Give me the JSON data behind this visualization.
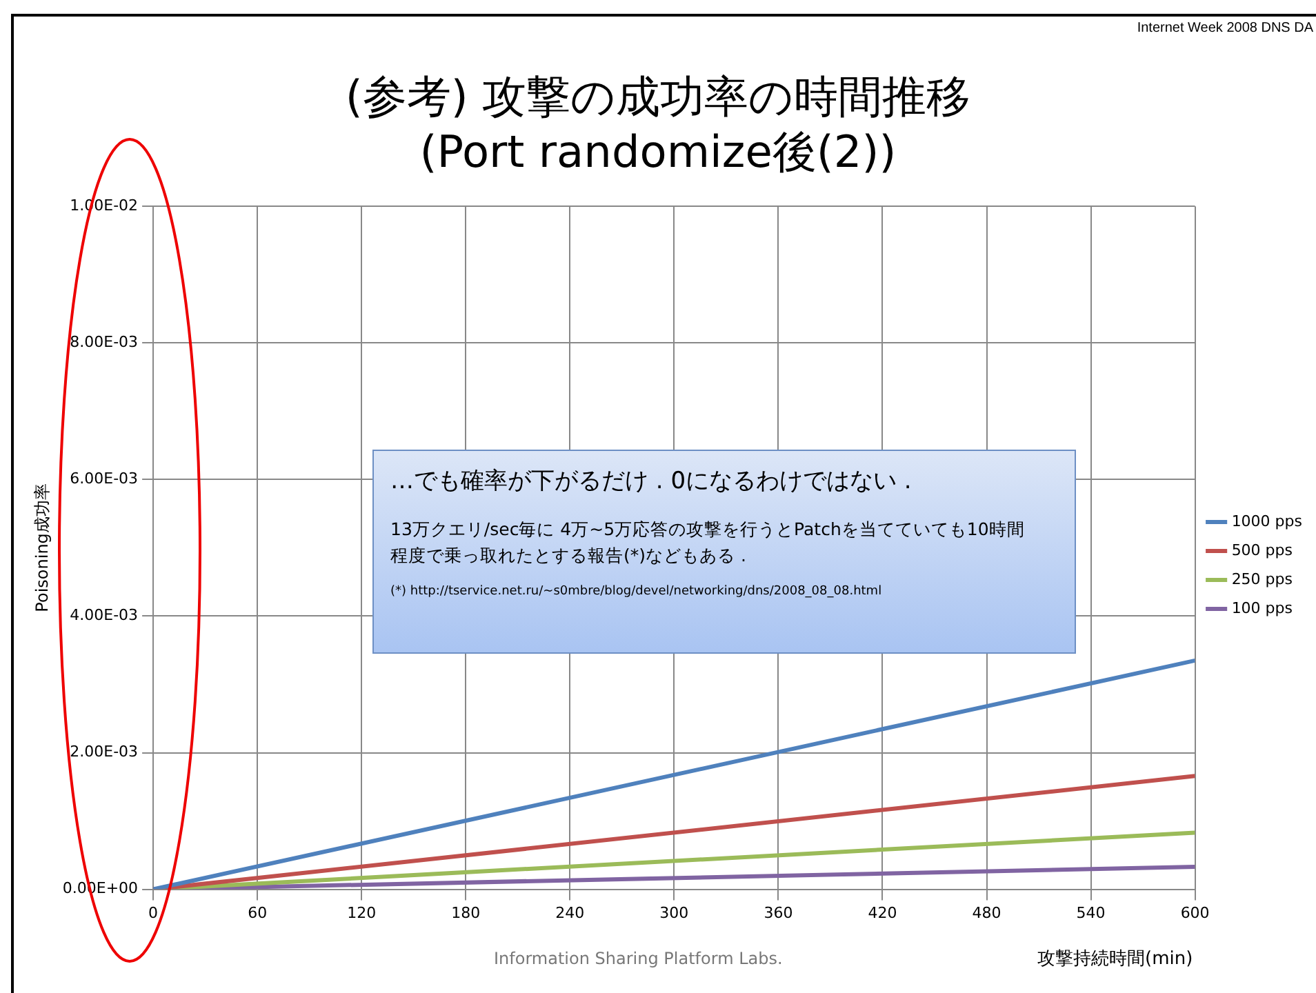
{
  "chart_data": {
    "type": "line",
    "title": "(参考) 攻撃の成功率の時間推移",
    "subtitle": "(Port randomize後(2))",
    "xlabel": "攻撃持続時間(min)",
    "ylabel": "Poisoning成功率",
    "x": [
      0,
      600
    ],
    "series": [
      {
        "name": "1000 pps",
        "color": "#4f81bd",
        "values": [
          0,
          0.00335
        ]
      },
      {
        "name": "500 pps",
        "color": "#c0504d",
        "values": [
          0,
          0.00166
        ]
      },
      {
        "name": "250 pps",
        "color": "#9bbb59",
        "values": [
          0,
          0.00083
        ]
      },
      {
        "name": "100 pps",
        "color": "#8064a2",
        "values": [
          0,
          0.00033
        ]
      }
    ],
    "xlim": [
      0,
      600
    ],
    "xticks": [
      0,
      60,
      120,
      180,
      240,
      300,
      360,
      420,
      480,
      540,
      600
    ],
    "ylim": [
      0,
      0.01
    ],
    "yticks": [
      {
        "value": 0,
        "label": "0.00E+00"
      },
      {
        "value": 0.002,
        "label": "2.00E-03"
      },
      {
        "value": 0.004,
        "label": "4.00E-03"
      },
      {
        "value": 0.006,
        "label": "6.00E-03"
      },
      {
        "value": 0.008,
        "label": "8.00E-03"
      },
      {
        "value": 0.01,
        "label": "1.00E-02"
      }
    ],
    "grid": true,
    "legend": "right",
    "marker": "none",
    "line_style": "solid",
    "annotations": [
      "…でも確率が下がるだけ . 0になるわけではない .",
      "13万クエリ/sec毎に 4万~5万応答の攻撃を行うとPatchを当てていても10時間程度で乗っ取れたとする報告(*)などもある .",
      "(*) http://tservice.net.ru/~s0mbre/blog/devel/networking/dns/2008_08_08.html",
      "Internet Week 2008 DNS DA",
      "Information Sharing Platform Labs."
    ]
  }
}
